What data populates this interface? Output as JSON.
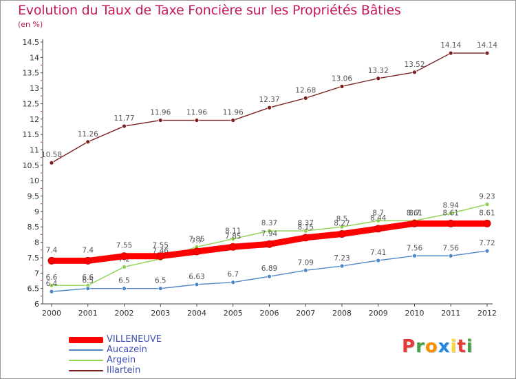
{
  "title": "Evolution du Taux de Taxe Foncière sur les Propriétés Bâties",
  "unit": "(en %)",
  "logo": {
    "text": "Proxiti",
    "letters": [
      "P",
      "r",
      "o",
      "x",
      "i",
      "t",
      "i"
    ],
    "colors": [
      "#e53935",
      "#43a047",
      "#fb8c00",
      "#1e88e5",
      "#fdd835",
      "#e53935",
      "#43a047"
    ]
  },
  "chart_data": {
    "type": "line",
    "title": "Evolution du Taux de Taxe Foncière sur les Propriétés Bâties",
    "xlabel": "",
    "ylabel": "(en %)",
    "ylim": [
      6,
      14.5
    ],
    "y_ticks": [
      "6",
      "6.5",
      "7",
      "7.5",
      "8",
      "8.5",
      "9",
      "9.5",
      "10",
      "10.5",
      "11",
      "11.5",
      "12",
      "12.5",
      "13",
      "13.5",
      "14",
      "14.5"
    ],
    "grid": false,
    "legend_position": "bottom-left",
    "x": [
      "2000",
      "2001",
      "2002",
      "2003",
      "2004",
      "2005",
      "2006",
      "2007",
      "2008",
      "2009",
      "2010",
      "2011",
      "2012"
    ],
    "series": [
      {
        "name": "VILLENEUVE",
        "color": "#ff0000",
        "values": [
          7.4,
          7.4,
          7.55,
          7.55,
          7.7,
          7.85,
          7.94,
          8.15,
          8.27,
          8.44,
          8.61,
          8.61,
          8.61
        ],
        "labels": [
          "7.4",
          "7.4",
          "7.55",
          "7.55",
          "7.7",
          "7.85",
          "7.94",
          "8.15",
          "8.27",
          "8.44",
          "8.61",
          "8.61",
          "8.61"
        ]
      },
      {
        "name": "Aucazein",
        "color": "#4f87c9",
        "values": [
          6.4,
          6.5,
          6.5,
          6.5,
          6.63,
          6.7,
          6.89,
          7.09,
          7.23,
          7.41,
          7.56,
          7.56,
          7.72
        ],
        "labels": [
          "6.4",
          "6.5",
          "6.5",
          "6.5",
          "6.63",
          "6.7",
          "6.89",
          "7.09",
          "7.23",
          "7.41",
          "7.56",
          "7.56",
          "7.72"
        ]
      },
      {
        "name": "Argein",
        "color": "#8fd14f",
        "values": [
          6.6,
          6.6,
          7.2,
          7.46,
          7.85,
          8.11,
          8.37,
          8.37,
          8.5,
          8.7,
          8.7,
          8.94,
          9.23
        ],
        "labels": [
          "6.6",
          "6.6",
          "7.2",
          "7.46",
          "7.85",
          "8.11",
          "8.37",
          "8.37",
          "8.5",
          "8.7",
          "8.7",
          "8.94",
          "9.23"
        ]
      },
      {
        "name": "Illartein",
        "color": "#7b1f1f",
        "values": [
          10.58,
          11.26,
          11.77,
          11.96,
          11.96,
          11.96,
          12.37,
          12.68,
          13.06,
          13.32,
          13.52,
          14.14,
          14.14
        ],
        "labels": [
          "10.58",
          "11.26",
          "11.77",
          "11.96",
          "11.96",
          "11.96",
          "12.37",
          "12.68",
          "13.06",
          "13.32",
          "13.52",
          "14.14",
          "14.14"
        ]
      }
    ]
  }
}
